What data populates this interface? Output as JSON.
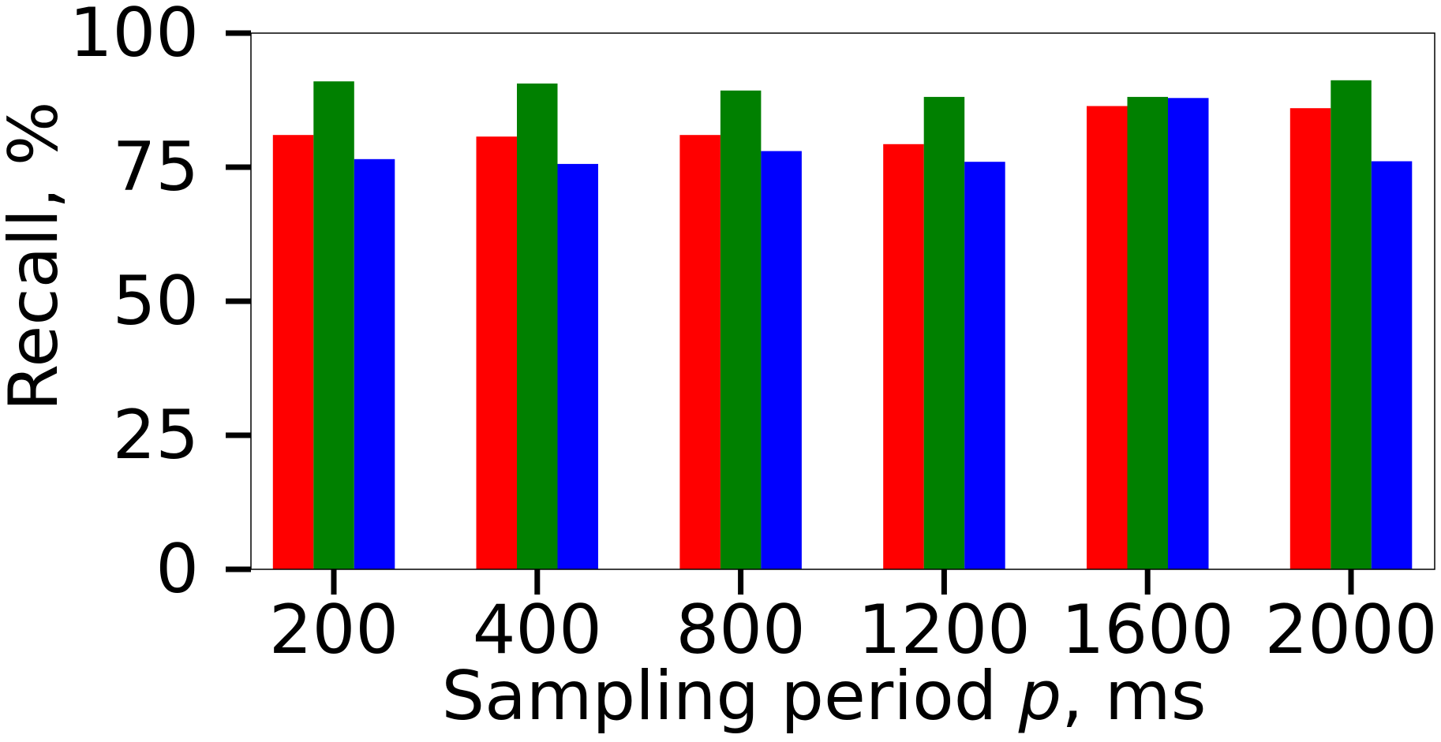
{
  "chart_data": {
    "type": "bar",
    "categories": [
      "200",
      "400",
      "800",
      "1200",
      "1600",
      "2000"
    ],
    "series": [
      {
        "color": "#ff0000",
        "values": [
          81.0,
          80.7,
          81.0,
          79.3,
          86.4,
          86.0
        ]
      },
      {
        "color": "#008000",
        "values": [
          91.0,
          90.6,
          89.3,
          88.1,
          88.1,
          91.2
        ]
      },
      {
        "color": "#0000ff",
        "values": [
          76.5,
          75.6,
          78.0,
          76.0,
          87.9,
          76.1
        ]
      }
    ],
    "title": "",
    "xlabel_prefix": "Sampling period ",
    "xlabel_var": "p",
    "xlabel_suffix": ", ms",
    "ylabel": "Recall, %",
    "ylim": [
      0,
      100
    ],
    "yticks": [
      "0",
      "25",
      "50",
      "75",
      "100"
    ],
    "grid": false,
    "legend": "none"
  }
}
